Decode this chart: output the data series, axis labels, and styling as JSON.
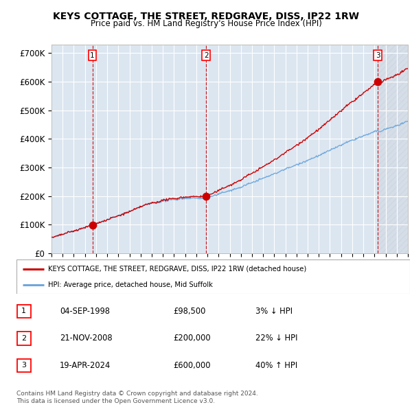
{
  "title": "KEYS COTTAGE, THE STREET, REDGRAVE, DISS, IP22 1RW",
  "subtitle": "Price paid vs. HM Land Registry's House Price Index (HPI)",
  "ylim": [
    0,
    730000
  ],
  "yticks": [
    0,
    100000,
    200000,
    300000,
    400000,
    500000,
    600000,
    700000
  ],
  "ytick_labels": [
    "£0",
    "£100K",
    "£200K",
    "£300K",
    "£400K",
    "£500K",
    "£600K",
    "£700K"
  ],
  "hpi_color": "#6fa8dc",
  "price_color": "#cc0000",
  "background_color": "#dce6f1",
  "grid_color": "#ffffff",
  "sales": [
    {
      "year": 1998.67,
      "price": 98500,
      "label": "1"
    },
    {
      "year": 2008.89,
      "price": 200000,
      "label": "2"
    },
    {
      "year": 2024.29,
      "price": 600000,
      "label": "3"
    }
  ],
  "legend_property_label": "KEYS COTTAGE, THE STREET, REDGRAVE, DISS, IP22 1RW (detached house)",
  "legend_hpi_label": "HPI: Average price, detached house, Mid Suffolk",
  "table_rows": [
    {
      "num": "1",
      "date": "04-SEP-1998",
      "price": "£98,500",
      "change": "3% ↓ HPI"
    },
    {
      "num": "2",
      "date": "21-NOV-2008",
      "price": "£200,000",
      "change": "22% ↓ HPI"
    },
    {
      "num": "3",
      "date": "19-APR-2024",
      "price": "£600,000",
      "change": "40% ↑ HPI"
    }
  ],
  "footer": "Contains HM Land Registry data © Crown copyright and database right 2024.\nThis data is licensed under the Open Government Licence v3.0."
}
